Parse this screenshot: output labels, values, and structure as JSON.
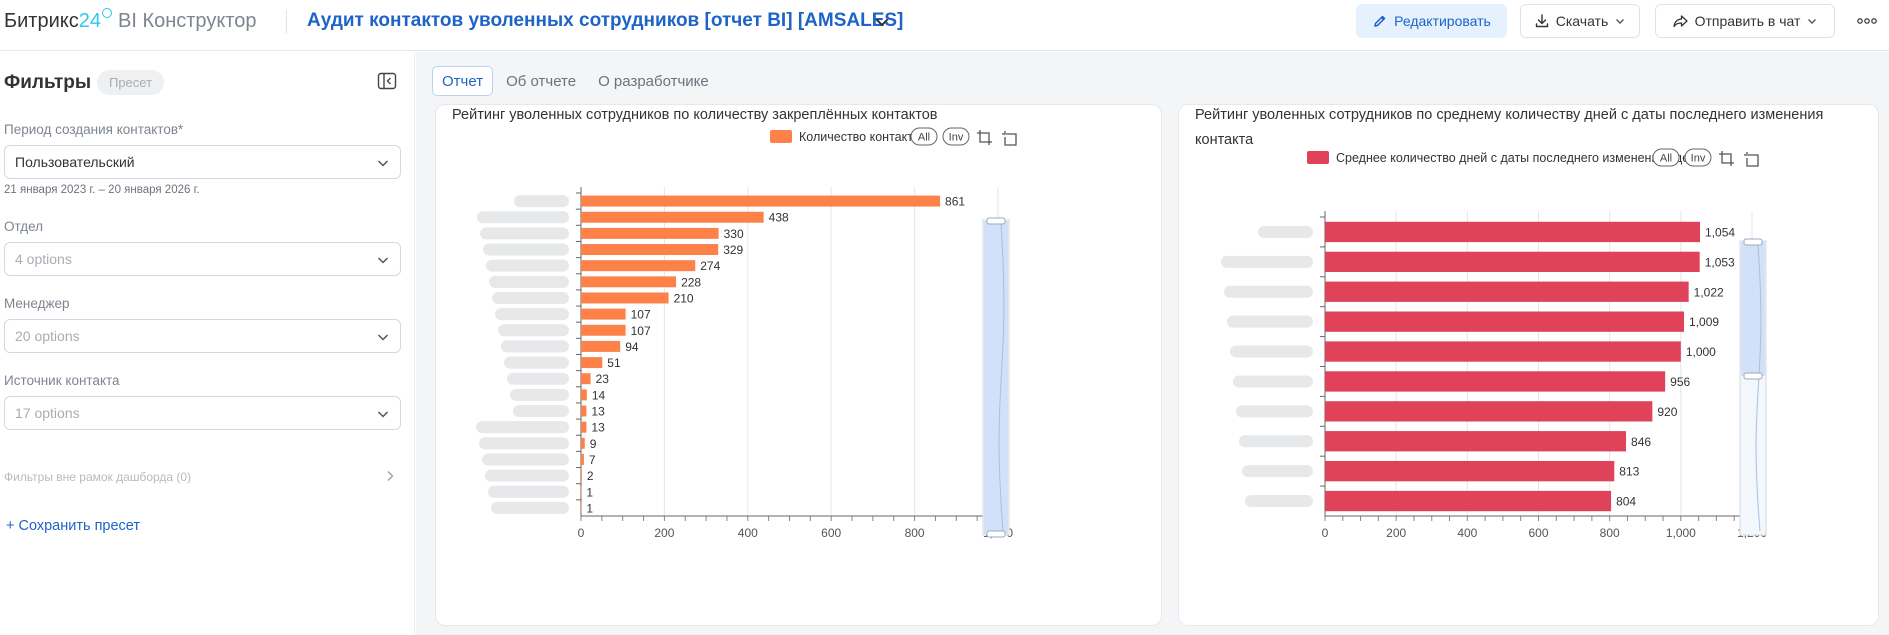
{
  "header": {
    "logo_main": "Битрикс",
    "logo_num": "24",
    "logo_sub": "BI Конструктор",
    "report_title": "Аудит контактов уволенных сотрудников [отчет BI] [AMSALES]",
    "edit_label": "Редактировать",
    "download_label": "Скачать",
    "send_label": "Отправить в чат"
  },
  "filters": {
    "title": "Фильтры",
    "preset_badge": "Пресет",
    "period_label": "Период создания контактов*",
    "period_value": "Пользовательский",
    "period_note": "21 января 2023 г. – 20 января 2026 г.",
    "dept_label": "Отдел",
    "dept_value": "4 options",
    "manager_label": "Менеджер",
    "manager_value": "20 options",
    "source_label": "Источник контакта",
    "source_value": "17 options",
    "out_of_scope": "Фильтры вне рамок дашборда (0)",
    "save_preset": "+ Сохранить пресет"
  },
  "tabs": [
    "Отчет",
    "Об отчете",
    "О разработчике"
  ],
  "colors": {
    "accent": "#1e63c7",
    "series_orange": "#fd824a",
    "series_red": "#e04259"
  },
  "chart_data": [
    {
      "type": "bar",
      "orientation": "horizontal",
      "title": "Рейтинг уволенных сотрудников по количеству закреплённых контактов",
      "legend_position": "top-right",
      "series": [
        {
          "name": "Количество контактов",
          "values": [
            861,
            438,
            330,
            329,
            274,
            228,
            210,
            107,
            107,
            94,
            51,
            23,
            14,
            13,
            13,
            9,
            7,
            2,
            1,
            1
          ]
        }
      ],
      "xlim": [
        0,
        1000
      ],
      "xticks": [
        0,
        200,
        400,
        600,
        800,
        1000
      ],
      "xtick_labels": [
        "0",
        "200",
        "400",
        "600",
        "800",
        "1,000"
      ],
      "grid": true,
      "legend_buttons": [
        "All",
        "Inv"
      ]
    },
    {
      "type": "bar",
      "orientation": "horizontal",
      "title": "Рейтинг уволенных сотрудников по среднему количеству дней с даты последнего изменения контакта",
      "legend_position": "top-right",
      "series": [
        {
          "name": "Среднее количество дней с даты последнего изменения сделки",
          "values": [
            1054,
            1053,
            1022,
            1009,
            1000,
            956,
            920,
            846,
            813,
            804
          ],
          "value_labels": [
            "1,054",
            "1,053",
            "1,022",
            "1,009",
            "1,000",
            "956",
            "920",
            "846",
            "813",
            "804"
          ]
        }
      ],
      "xlim": [
        0,
        1200
      ],
      "xticks": [
        0,
        200,
        400,
        600,
        800,
        1000,
        1200
      ],
      "xtick_labels": [
        "0",
        "200",
        "400",
        "600",
        "800",
        "1,000",
        "1,200"
      ],
      "grid": true,
      "legend_buttons": [
        "All",
        "Inv"
      ]
    }
  ]
}
